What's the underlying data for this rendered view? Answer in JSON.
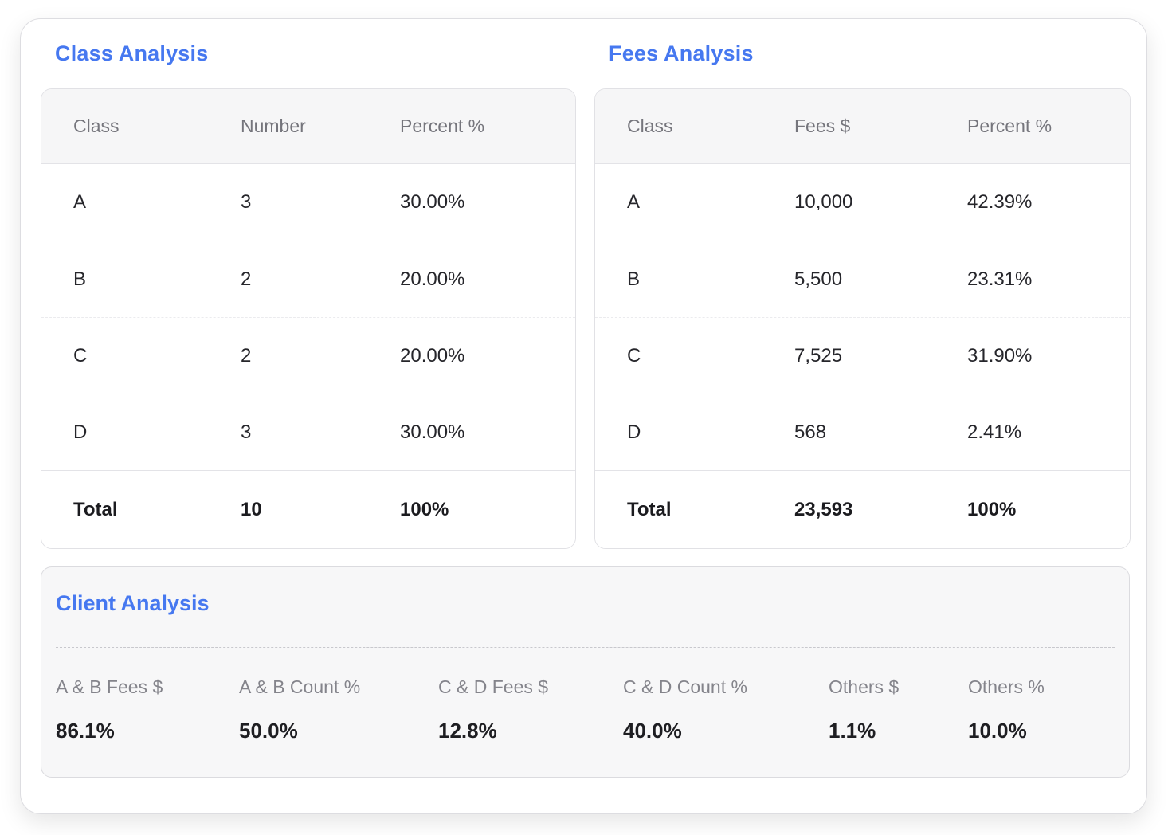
{
  "theme": {
    "accent_blue": "#4678f0",
    "header_text_gray": "#75757c",
    "body_text_dark": "#26262b",
    "panel_background": "#f7f7f8",
    "table_header_background": "#f6f6f7",
    "border_color": "#e1e1e5"
  },
  "class_analysis": {
    "title": "Class Analysis",
    "columns": [
      "Class",
      "Number",
      "Percent %"
    ],
    "rows": [
      [
        "A",
        "3",
        "30.00%"
      ],
      [
        "B",
        "2",
        "20.00%"
      ],
      [
        "C",
        "2",
        "20.00%"
      ],
      [
        "D",
        "3",
        "30.00%"
      ]
    ],
    "total": [
      "Total",
      "10",
      "100%"
    ]
  },
  "fees_analysis": {
    "title": "Fees Analysis",
    "columns": [
      "Class",
      "Fees $",
      "Percent %"
    ],
    "rows": [
      [
        "A",
        "10,000",
        "42.39%"
      ],
      [
        "B",
        "5,500",
        "23.31%"
      ],
      [
        "C",
        "7,525",
        "31.90%"
      ],
      [
        "D",
        "568",
        "2.41%"
      ]
    ],
    "total": [
      "Total",
      "23,593",
      "100%"
    ]
  },
  "client_analysis": {
    "title": "Client Analysis",
    "metrics": [
      {
        "label": "A & B Fees $",
        "value": "86.1%"
      },
      {
        "label": "A & B Count %",
        "value": "50.0%"
      },
      {
        "label": "C & D Fees $",
        "value": "12.8%"
      },
      {
        "label": "C & D Count %",
        "value": "40.0%"
      },
      {
        "label": "Others $",
        "value": "1.1%"
      },
      {
        "label": "Others %",
        "value": "10.0%"
      }
    ]
  }
}
